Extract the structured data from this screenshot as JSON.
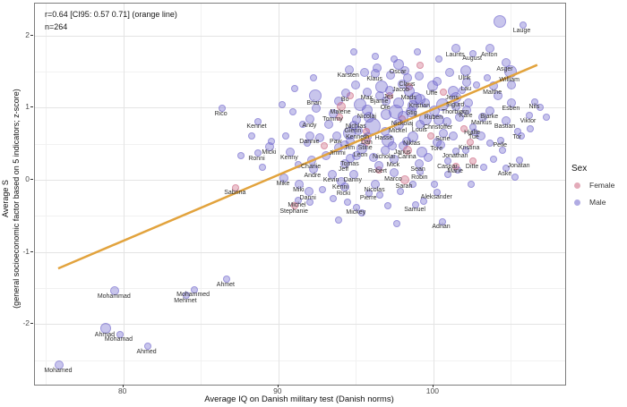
{
  "annotation": {
    "line1": "r=0.64 [CI95: 0.57 0.71] (orange line)",
    "line2": "n=264"
  },
  "axes": {
    "x_title": "Average IQ on Danish military test (Danish norms)",
    "y_title_line1": "Average S",
    "y_title_line2": "(general socioeconomic factor based on 5 indicators; z-score)"
  },
  "legend": {
    "title": "Sex",
    "items": [
      {
        "label": "Female",
        "color": "#cc6680"
      },
      {
        "label": "Male",
        "color": "#6f66cc"
      }
    ]
  },
  "chart_data": {
    "type": "scatter",
    "title": "",
    "xlabel": "Average IQ on Danish military test (Danish norms)",
    "ylabel": "Average S (general socioeconomic factor based on 5 indicators; z-score)",
    "xlim": [
      74.3,
      108.5
    ],
    "ylim": [
      -2.84,
      2.44
    ],
    "x_ticks": [
      80,
      90,
      100
    ],
    "x_minor": [
      75,
      85,
      95,
      105
    ],
    "y_ticks": [
      2,
      1,
      0,
      -1,
      -2
    ],
    "y_minor": [
      1.5,
      0.5,
      -0.5,
      -1.5,
      -2.5
    ],
    "grid": true,
    "legend_position": "right",
    "stats": {
      "r": 0.64,
      "ci95": [
        0.57,
        0.71
      ],
      "n": 264
    },
    "regression_line": {
      "x1": 75.8,
      "y1": -1.23,
      "x2": 106.7,
      "y2": 1.59,
      "color": "#e2a33d",
      "width": 2.5
    },
    "colors": {
      "male": "#6f66cc",
      "female": "#cc6680",
      "label": "#2e2e2e"
    },
    "named_points": [
      {
        "name": "Lauge",
        "iq": 105.7,
        "s": 2.15,
        "r": 3
      },
      {
        "name": "Laurits",
        "iq": 101.4,
        "s": 1.83,
        "r": 4
      },
      {
        "name": "Anton",
        "iq": 103.6,
        "s": 1.83,
        "r": 4
      },
      {
        "name": "August",
        "iq": 102.5,
        "s": 1.76,
        "r": 3
      },
      {
        "name": "Asger",
        "iq": 104.6,
        "s": 1.63,
        "r": 4
      },
      {
        "name": "William",
        "iq": 104.9,
        "s": 1.51,
        "r": 6
      },
      {
        "name": "Ulrik",
        "iq": 102.0,
        "s": 1.52,
        "r": 5
      },
      {
        "name": "Oscar",
        "iq": 97.7,
        "s": 1.61,
        "r": 5
      },
      {
        "name": "Karsten",
        "iq": 94.5,
        "s": 1.54,
        "r": 4
      },
      {
        "name": "Klaus",
        "iq": 96.2,
        "s": 1.49,
        "r": 4
      },
      {
        "name": "Claus",
        "iq": 98.3,
        "s": 1.42,
        "r": 4
      },
      {
        "name": "Jacob",
        "iq": 97.9,
        "s": 1.34,
        "r": 4
      },
      {
        "name": "Uffe",
        "iq": 99.9,
        "s": 1.31,
        "r": 5
      },
      {
        "name": "Lau",
        "iq": 102.1,
        "s": 1.36,
        "r": 4
      },
      {
        "name": "Malthe",
        "iq": 103.8,
        "s": 1.31,
        "r": 4
      },
      {
        "name": "Bo",
        "iq": 94.3,
        "s": 1.21,
        "r": 4
      },
      {
        "name": "Max",
        "iq": 95.7,
        "s": 1.23,
        "r": 4
      },
      {
        "name": "Jes",
        "iq": 97.1,
        "s": 1.25,
        "r": 4
      },
      {
        "name": "Mads",
        "iq": 98.4,
        "s": 1.24,
        "r": 5
      },
      {
        "name": "Bjarne",
        "iq": 96.5,
        "s": 1.18,
        "r": 4
      },
      {
        "name": "Ole",
        "iq": 96.9,
        "s": 1.1,
        "r": 4
      },
      {
        "name": "Kristian",
        "iq": 99.1,
        "s": 1.13,
        "r": 5
      },
      {
        "name": "Jens",
        "iq": 101.2,
        "s": 1.24,
        "r": 5
      },
      {
        "name": "Sigurd",
        "iq": 101.4,
        "s": 1.15,
        "r": 5
      },
      {
        "name": "Stig",
        "iq": 98.6,
        "s": 1.04,
        "r": 5
      },
      {
        "name": "Thorbjørn",
        "iq": 101.4,
        "s": 1.03,
        "r": 4
      },
      {
        "name": "Esben",
        "iq": 105.0,
        "s": 1.08,
        "r": 4
      },
      {
        "name": "Nils",
        "iq": 106.5,
        "s": 1.09,
        "r": 3
      },
      {
        "name": "Brian",
        "iq": 92.3,
        "s": 1.18,
        "r": 6
      },
      {
        "name": "Malene",
        "iq": 94.0,
        "s": 1.03,
        "r": 4,
        "sex": "f"
      },
      {
        "name": "Tommy",
        "iq": 93.5,
        "s": 0.93,
        "r": 4
      },
      {
        "name": "Nicolaj",
        "iq": 95.7,
        "s": 0.98,
        "r": 5
      },
      {
        "name": "Ruben",
        "iq": 100.0,
        "s": 0.97,
        "r": 5
      },
      {
        "name": "Kåre",
        "iq": 102.1,
        "s": 0.98,
        "r": 4
      },
      {
        "name": "Bjarke",
        "iq": 103.6,
        "s": 0.97,
        "r": 4
      },
      {
        "name": "Andy",
        "iq": 92.0,
        "s": 0.85,
        "r": 4
      },
      {
        "name": "Nichlas",
        "iq": 95.0,
        "s": 0.84,
        "r": 4
      },
      {
        "name": "Nickolaj",
        "iq": 98.0,
        "s": 0.89,
        "r": 5
      },
      {
        "name": "Christoffer",
        "iq": 100.3,
        "s": 0.84,
        "r": 5
      },
      {
        "name": "Markus",
        "iq": 103.1,
        "s": 0.88,
        "r": 4
      },
      {
        "name": "Viktor",
        "iq": 106.1,
        "s": 0.9,
        "r": 3
      },
      {
        "name": "Glenn",
        "iq": 94.8,
        "s": 0.77,
        "r": 4
      },
      {
        "name": "Mickel",
        "iq": 97.7,
        "s": 0.78,
        "r": 5
      },
      {
        "name": "Louis",
        "iq": 99.1,
        "s": 0.78,
        "r": 4
      },
      {
        "name": "Bastian",
        "iq": 104.6,
        "s": 0.83,
        "r": 4
      },
      {
        "name": "Kenneth",
        "iq": 95.1,
        "s": 0.69,
        "r": 4
      },
      {
        "name": "Hasse",
        "iq": 96.8,
        "s": 0.68,
        "r": 4
      },
      {
        "name": "Hjalte",
        "iq": 102.5,
        "s": 0.74,
        "r": 3
      },
      {
        "name": "Tue",
        "iq": 102.6,
        "s": 0.67,
        "r": 3
      },
      {
        "name": "Tor",
        "iq": 105.4,
        "s": 0.68,
        "r": 3
      },
      {
        "name": "Dan",
        "iq": 95.7,
        "s": 0.61,
        "r": 4
      },
      {
        "name": "Niklas",
        "iq": 98.6,
        "s": 0.61,
        "r": 5
      },
      {
        "name": "Sune",
        "iq": 100.6,
        "s": 0.66,
        "r": 4
      },
      {
        "name": "Stine",
        "iq": 95.6,
        "s": 0.54,
        "r": 4,
        "sex": "f"
      },
      {
        "name": "Tim",
        "iq": 94.6,
        "s": 0.54,
        "r": 4
      },
      {
        "name": "Janus",
        "iq": 98.0,
        "s": 0.48,
        "r": 4
      },
      {
        "name": "Tore",
        "iq": 100.2,
        "s": 0.53,
        "r": 4
      },
      {
        "name": "Kristina",
        "iq": 102.3,
        "s": 0.53,
        "r": 3,
        "sex": "f"
      },
      {
        "name": "Pelle",
        "iq": 104.3,
        "s": 0.56,
        "r": 3
      },
      {
        "name": "Leon",
        "iq": 95.3,
        "s": 0.45,
        "r": 5
      },
      {
        "name": "Nicholai",
        "iq": 96.8,
        "s": 0.42,
        "r": 4
      },
      {
        "name": "Carina",
        "iq": 98.3,
        "s": 0.42,
        "r": 4,
        "sex": "f"
      },
      {
        "name": "Jonathan",
        "iq": 101.4,
        "s": 0.41,
        "r": 3
      },
      {
        "name": "Rico",
        "iq": 86.3,
        "s": 1.0,
        "r": 3
      },
      {
        "name": "Kennet",
        "iq": 88.6,
        "s": 0.82,
        "r": 3
      },
      {
        "name": "Micki",
        "iq": 89.4,
        "s": 0.47,
        "r": 4
      },
      {
        "name": "Ronni",
        "iq": 88.6,
        "s": 0.38,
        "r": 3
      },
      {
        "name": "Kenny",
        "iq": 90.7,
        "s": 0.4,
        "r": 4
      },
      {
        "name": "Charlie",
        "iq": 92.1,
        "s": 0.28,
        "r": 4
      },
      {
        "name": "Andre",
        "iq": 92.2,
        "s": 0.16,
        "r": 4
      },
      {
        "name": "Mike",
        "iq": 90.3,
        "s": 0.04,
        "r": 4
      },
      {
        "name": "Miki",
        "iq": 91.3,
        "s": -0.05,
        "r": 4
      },
      {
        "name": "Danni",
        "iq": 91.9,
        "s": -0.15,
        "r": 4
      },
      {
        "name": "Michel",
        "iq": 91.2,
        "s": -0.27,
        "r": 3
      },
      {
        "name": "Stephanie",
        "iq": 91.0,
        "s": -0.35,
        "r": 3,
        "sex": "f"
      },
      {
        "name": "Sabrina",
        "iq": 87.2,
        "s": -0.1,
        "r": 3,
        "sex": "f"
      },
      {
        "name": "Dannie",
        "iq": 92.0,
        "s": 0.62,
        "r": 4
      },
      {
        "name": "Paw",
        "iq": 93.7,
        "s": 0.62,
        "r": 4
      },
      {
        "name": "Jimmi",
        "iq": 93.8,
        "s": 0.46,
        "r": 4
      },
      {
        "name": "Tomas",
        "iq": 94.6,
        "s": 0.31,
        "r": 4
      },
      {
        "name": "Mick",
        "iq": 97.4,
        "s": 0.3,
        "r": 4
      },
      {
        "name": "Jeff",
        "iq": 94.2,
        "s": 0.24,
        "r": 4
      },
      {
        "name": "Robert",
        "iq": 96.4,
        "s": 0.21,
        "r": 4
      },
      {
        "name": "Sean",
        "iq": 99.0,
        "s": 0.24,
        "r": 4
      },
      {
        "name": "Marco",
        "iq": 97.4,
        "s": 0.11,
        "r": 4
      },
      {
        "name": "Robin",
        "iq": 99.1,
        "s": 0.12,
        "r": 3
      },
      {
        "name": "Kevin",
        "iq": 93.4,
        "s": 0.09,
        "r": 4
      },
      {
        "name": "Danny",
        "iq": 94.8,
        "s": 0.09,
        "r": 4
      },
      {
        "name": "Kenni",
        "iq": 94.0,
        "s": -0.01,
        "r": 4
      },
      {
        "name": "Ricki",
        "iq": 94.2,
        "s": -0.09,
        "r": 4
      },
      {
        "name": "Nicolas",
        "iq": 96.2,
        "s": -0.05,
        "r": 4
      },
      {
        "name": "Sarah",
        "iq": 98.1,
        "s": 0.01,
        "r": 4,
        "sex": "f"
      },
      {
        "name": "Pierre",
        "iq": 95.8,
        "s": -0.17,
        "r": 3
      },
      {
        "name": "Aleksander",
        "iq": 100.2,
        "s": -0.16,
        "r": 3
      },
      {
        "name": "Mickey",
        "iq": 95.0,
        "s": -0.37,
        "r": 3
      },
      {
        "name": "Samuel",
        "iq": 98.8,
        "s": -0.33,
        "r": 3
      },
      {
        "name": "Adrian",
        "iq": 100.5,
        "s": -0.57,
        "r": 3
      },
      {
        "name": "Caspar",
        "iq": 100.9,
        "s": 0.27,
        "r": 3
      },
      {
        "name": "Ditte",
        "iq": 102.5,
        "s": 0.27,
        "r": 3,
        "sex": "f"
      },
      {
        "name": "Marie",
        "iq": 101.4,
        "s": 0.2,
        "r": 3,
        "sex": "f"
      },
      {
        "name": "Jonatan",
        "iq": 105.5,
        "s": 0.28,
        "r": 3
      },
      {
        "name": "Aske",
        "iq": 104.6,
        "s": 0.17,
        "r": 3
      },
      {
        "name": "Mohammad",
        "iq": 79.4,
        "s": -1.52,
        "r": 4
      },
      {
        "name": "Mehmet",
        "iq": 84.0,
        "s": -1.59,
        "r": 3
      },
      {
        "name": "Mohammed",
        "iq": 84.5,
        "s": -1.51,
        "r": 3
      },
      {
        "name": "Ahmet",
        "iq": 86.6,
        "s": -1.37,
        "r": 3
      },
      {
        "name": "Ahmad",
        "iq": 78.8,
        "s": -2.04,
        "r": 5
      },
      {
        "name": "Mohamad",
        "iq": 79.7,
        "s": -2.13,
        "r": 3
      },
      {
        "name": "Ahmed",
        "iq": 81.5,
        "s": -2.3,
        "r": 3
      },
      {
        "name": "Mohamed",
        "iq": 75.8,
        "s": -2.55,
        "r": 4
      }
    ],
    "unnamed_points": [
      [
        104.2,
        2.2,
        6
      ],
      [
        96.0,
        0.75,
        8
      ],
      [
        97.5,
        0.95,
        7
      ],
      [
        99.4,
        0.86,
        6
      ],
      [
        95.2,
        1.05,
        6
      ],
      [
        98.8,
        1.14,
        6
      ],
      [
        97.0,
        0.56,
        6
      ],
      [
        100.5,
        1.05,
        6
      ],
      [
        94.5,
        0.66,
        6
      ],
      [
        96.6,
        1.3,
        6
      ],
      [
        99.2,
        0.4,
        5
      ],
      [
        93.2,
        0.78,
        4
      ],
      [
        93.8,
        1.1,
        4
      ],
      [
        94.9,
        1.33,
        4
      ],
      [
        95.5,
        1.5,
        4
      ],
      [
        96.3,
        1.56,
        4
      ],
      [
        97.2,
        1.46,
        4
      ],
      [
        98.1,
        1.52,
        4
      ],
      [
        99.0,
        1.45,
        4
      ],
      [
        100.2,
        1.38,
        4
      ],
      [
        101.0,
        1.5,
        4
      ],
      [
        95.8,
        0.88,
        5
      ],
      [
        96.9,
        0.92,
        5
      ],
      [
        97.7,
        1.08,
        5
      ],
      [
        98.5,
        0.95,
        5
      ],
      [
        99.4,
        1.08,
        4
      ],
      [
        100.8,
        0.82,
        4
      ],
      [
        101.6,
        0.88,
        4
      ],
      [
        102.2,
        1.08,
        4
      ],
      [
        94.2,
        0.5,
        4
      ],
      [
        95.0,
        0.35,
        4
      ],
      [
        96.1,
        0.32,
        4
      ],
      [
        97.3,
        0.48,
        4
      ],
      [
        98.2,
        0.55,
        4
      ],
      [
        99.6,
        0.32,
        4
      ],
      [
        100.4,
        0.5,
        4
      ],
      [
        101.2,
        0.62,
        4
      ],
      [
        102.0,
        0.42,
        3
      ],
      [
        92.6,
        0.6,
        4
      ],
      [
        93.0,
        0.35,
        4
      ],
      [
        91.8,
        0.52,
        3
      ],
      [
        92.4,
        1.0,
        4
      ],
      [
        91.5,
        0.78,
        3
      ],
      [
        103.0,
        0.62,
        4
      ],
      [
        103.6,
        0.52,
        3
      ],
      [
        104.1,
        1.18,
        4
      ],
      [
        105.0,
        1.32,
        4
      ],
      [
        105.6,
        0.62,
        3
      ],
      [
        106.2,
        0.72,
        3
      ],
      [
        106.8,
        1.02,
        3
      ],
      [
        107.2,
        0.88,
        3
      ],
      [
        90.4,
        0.62,
        3
      ],
      [
        90.9,
        0.95,
        3
      ],
      [
        91.2,
        0.22,
        3
      ],
      [
        92.0,
        -0.3,
        3
      ],
      [
        92.8,
        -0.12,
        3
      ],
      [
        93.5,
        -0.25,
        3
      ],
      [
        94.4,
        -0.3,
        3
      ],
      [
        95.3,
        -0.45,
        3
      ],
      [
        96.5,
        -0.2,
        3
      ],
      [
        97.0,
        -0.35,
        3
      ],
      [
        97.8,
        -0.15,
        3
      ],
      [
        98.6,
        -0.05,
        3
      ],
      [
        99.3,
        -0.28,
        3
      ],
      [
        100.0,
        -0.05,
        3
      ],
      [
        100.9,
        0.08,
        3
      ],
      [
        101.5,
        0.15,
        3
      ],
      [
        102.4,
        -0.05,
        3
      ],
      [
        103.2,
        0.18,
        3
      ],
      [
        103.8,
        0.3,
        3
      ],
      [
        104.4,
        0.42,
        3
      ],
      [
        105.2,
        0.05,
        3
      ],
      [
        88.9,
        0.18,
        3
      ],
      [
        89.5,
        0.55,
        3
      ],
      [
        88.2,
        0.62,
        3
      ],
      [
        87.5,
        0.35,
        3
      ],
      [
        96.2,
        1.72,
        3
      ],
      [
        97.4,
        1.68,
        3
      ],
      [
        94.8,
        1.78,
        3
      ],
      [
        98.9,
        1.78,
        3
      ],
      [
        100.3,
        1.68,
        3
      ],
      [
        101.8,
        1.25,
        3
      ],
      [
        102.7,
        1.32,
        3
      ],
      [
        103.4,
        1.42,
        3
      ],
      [
        91.0,
        1.28,
        3
      ],
      [
        92.2,
        1.42,
        3
      ],
      [
        90.2,
        1.05,
        3
      ],
      [
        93.8,
        -0.55,
        3
      ],
      [
        97.6,
        -0.6,
        3
      ],
      [
        95.6,
        0.68,
        3,
        "f"
      ],
      [
        97.1,
        1.18,
        3,
        "f"
      ],
      [
        98.4,
        1.3,
        3,
        "f"
      ],
      [
        99.8,
        0.62,
        3,
        "f"
      ],
      [
        96.4,
        0.15,
        3,
        "f"
      ],
      [
        93.9,
        0.88,
        3,
        "f"
      ],
      [
        100.6,
        1.22,
        3,
        "f"
      ],
      [
        101.9,
        0.72,
        3,
        "f"
      ],
      [
        97.9,
        0.85,
        3,
        "f"
      ],
      [
        94.6,
        1.18,
        3,
        "f"
      ],
      [
        99.1,
        1.6,
        3,
        "f"
      ],
      [
        92.9,
        0.48,
        3,
        "f"
      ]
    ]
  }
}
